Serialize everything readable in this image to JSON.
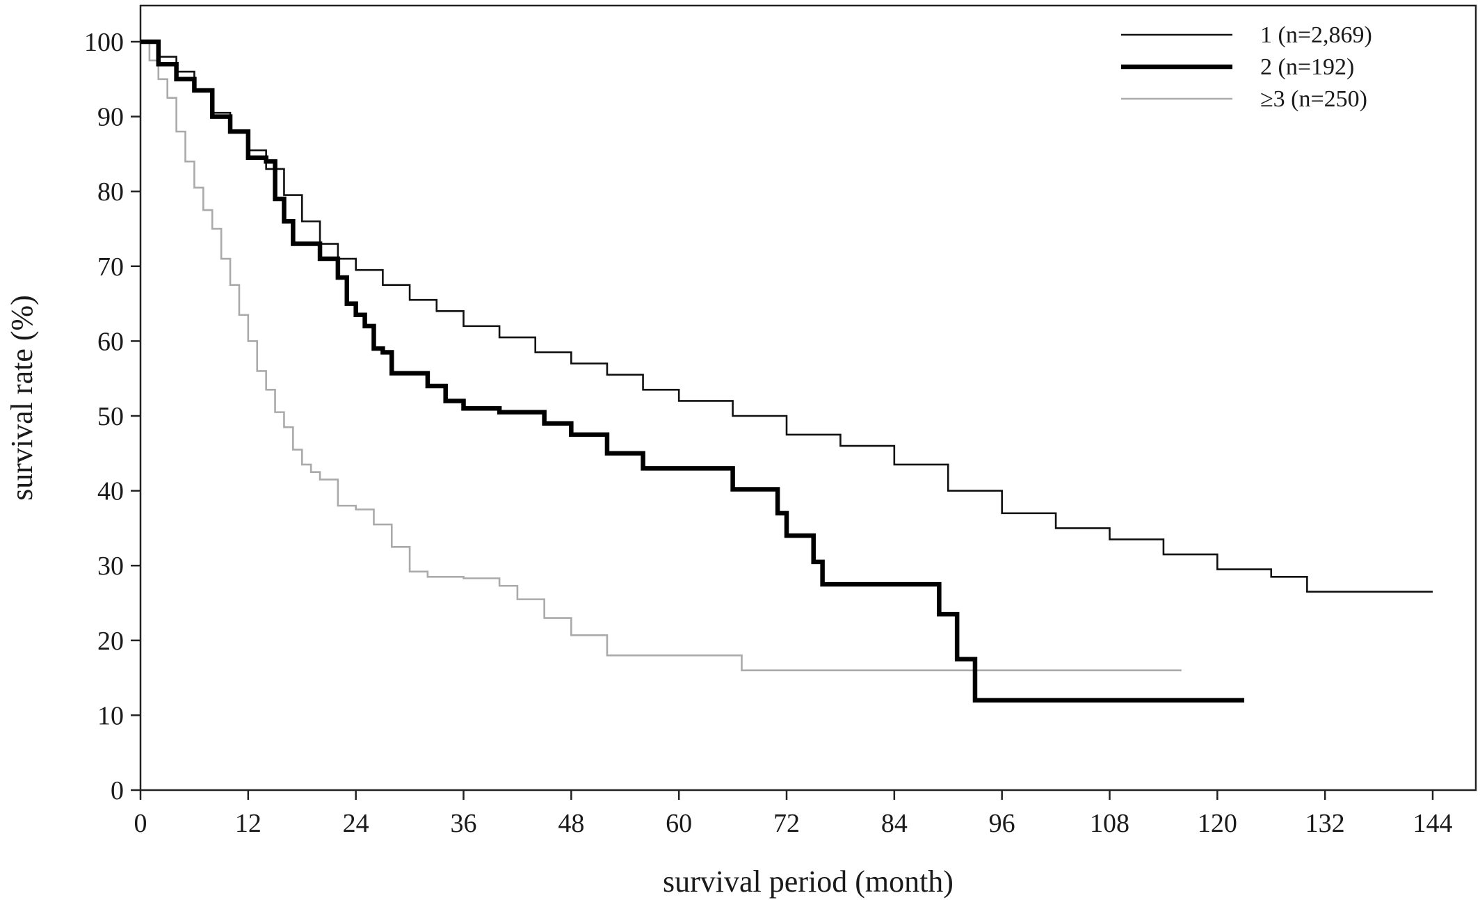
{
  "chart_data": {
    "type": "line",
    "xlabel": "survival period (month)",
    "ylabel": "survival rate (%)",
    "xlim": [
      0,
      146
    ],
    "ylim": [
      0,
      105
    ],
    "xticks": [
      0,
      12,
      24,
      36,
      48,
      60,
      72,
      84,
      96,
      108,
      120,
      132,
      144
    ],
    "yticks": [
      0,
      10,
      20,
      30,
      40,
      50,
      60,
      70,
      80,
      90,
      100
    ],
    "grid": false,
    "legend_position": "top-right",
    "series": [
      {
        "name": "1 (n=2,869)",
        "color": "#111111",
        "line_style": "thin",
        "x": [
          0,
          2,
          4,
          6,
          8,
          10,
          12,
          14,
          16,
          18,
          20,
          22,
          24,
          27,
          30,
          33,
          36,
          40,
          44,
          48,
          52,
          56,
          60,
          66,
          72,
          78,
          84,
          90,
          96,
          102,
          108,
          114,
          120,
          126,
          130,
          136,
          144
        ],
        "y": [
          100,
          98,
          96,
          93.5,
          90.5,
          88,
          85.5,
          83,
          79.5,
          76,
          73,
          71,
          69.5,
          67.5,
          65.5,
          64,
          62,
          60.5,
          58.5,
          57,
          55.5,
          53.5,
          52,
          50,
          47.5,
          46,
          43.5,
          40,
          37,
          35,
          33.5,
          31.5,
          29.5,
          28.5,
          26.5,
          26.5,
          26.5
        ]
      },
      {
        "name": "2 (n=192)",
        "color": "#000000",
        "line_style": "thick",
        "x": [
          0,
          2,
          4,
          6,
          8,
          10,
          12,
          14,
          15,
          16,
          17,
          18,
          20,
          22,
          23,
          24,
          25,
          26,
          27,
          28,
          32,
          34,
          36,
          40,
          45,
          48,
          52,
          56,
          60,
          66,
          71,
          72,
          75,
          76,
          80,
          89,
          91,
          93,
          100,
          110,
          123
        ],
        "y": [
          100,
          97,
          95,
          93.5,
          90,
          88,
          84.5,
          84,
          79,
          76,
          73,
          73,
          71,
          68.5,
          65,
          63.5,
          62,
          59,
          58.5,
          55.7,
          54,
          52,
          51,
          50.5,
          49,
          47.5,
          45,
          43,
          43,
          40.2,
          37,
          34,
          30.5,
          27.5,
          27.5,
          23.5,
          17.5,
          12,
          12,
          12,
          12
        ]
      },
      {
        "name": "≥3 (n=250)",
        "color": "#aaaaaa",
        "line_style": "thin",
        "x": [
          0,
          1,
          2,
          3,
          4,
          5,
          6,
          7,
          8,
          9,
          10,
          11,
          12,
          13,
          14,
          15,
          16,
          17,
          18,
          19,
          20,
          22,
          24,
          26,
          28,
          30,
          32,
          36,
          40,
          42,
          45,
          48,
          52,
          60,
          66,
          67,
          80,
          100,
          116
        ],
        "y": [
          100,
          97.5,
          95,
          92.5,
          88,
          84,
          80.5,
          77.5,
          75,
          71,
          67.5,
          63.5,
          60,
          56,
          53.5,
          50.5,
          48.5,
          45.5,
          43.5,
          42.5,
          41.5,
          38,
          37.5,
          35.5,
          32.5,
          29.2,
          28.5,
          28.3,
          27.3,
          25.5,
          23,
          20.7,
          18,
          18,
          18,
          16,
          16,
          16,
          16
        ]
      }
    ]
  }
}
